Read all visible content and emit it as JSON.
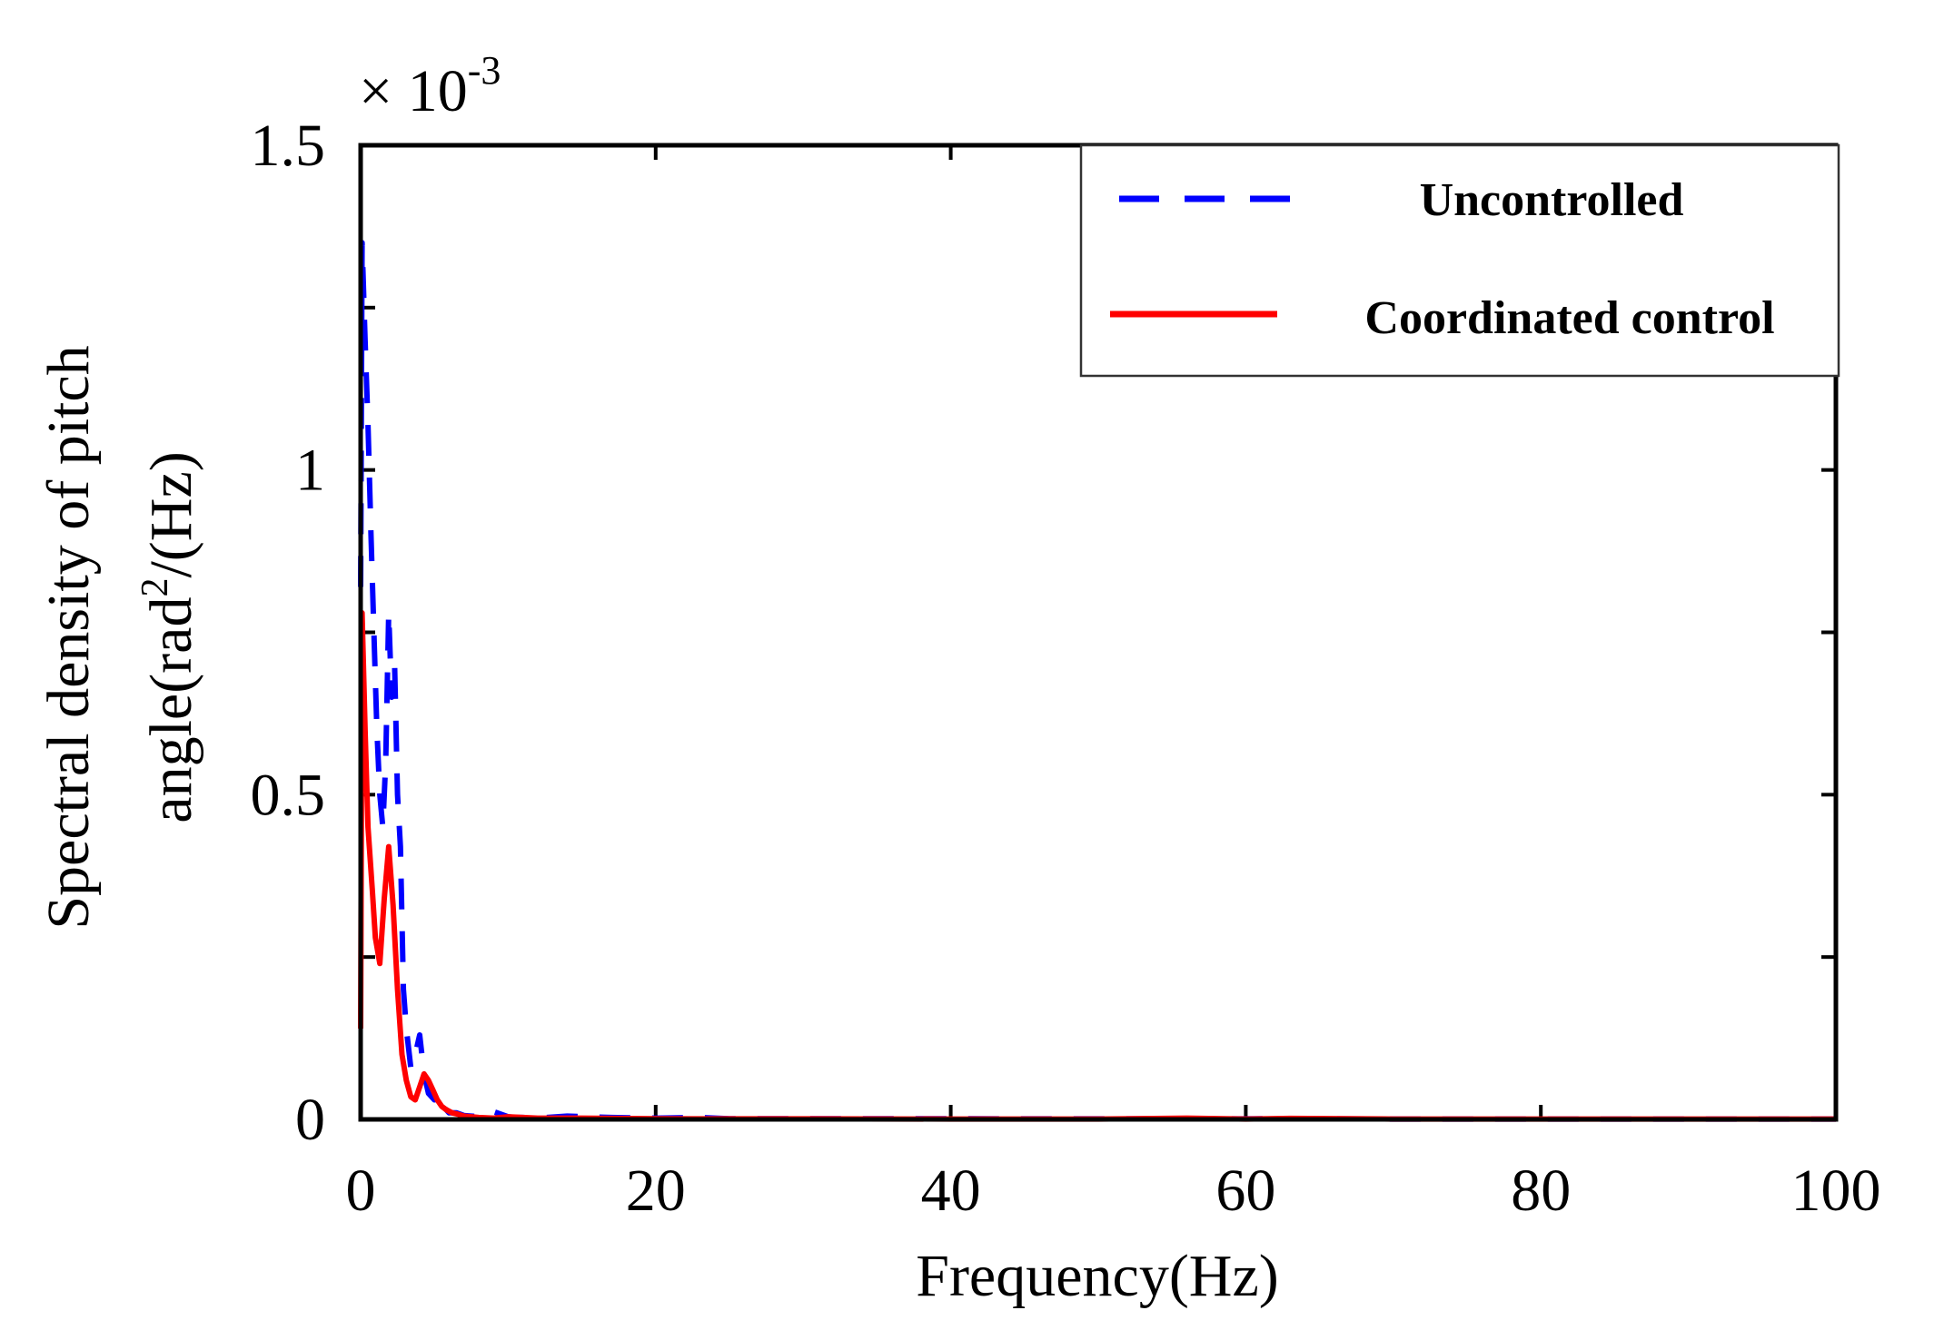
{
  "chart_data": {
    "type": "line",
    "title": "",
    "xlabel": "Frequency(Hz)",
    "ylabel_line1": "Spectral density of pitch",
    "ylabel_line2_prefix": "angle(rad",
    "ylabel_line2_sup": "2",
    "ylabel_line2_suffix": "/(Hz)",
    "exponent_prefix": "× 10",
    "exponent_power": "-3",
    "xlim": [
      0,
      100
    ],
    "ylim": [
      0,
      1.5
    ],
    "y_scale": 0.001,
    "xticks": [
      0,
      20,
      40,
      60,
      80,
      100
    ],
    "xtick_labels": [
      "0",
      "20",
      "40",
      "60",
      "80",
      "100"
    ],
    "yticks": [
      0,
      0.5,
      1,
      1.5
    ],
    "ytick_labels": [
      "0",
      "0.5",
      "1",
      "1.5"
    ],
    "y_minor_ticks": [
      0.25,
      0.75,
      1.25
    ],
    "grid": false,
    "legend_position": "top-right",
    "series": [
      {
        "name": "Uncontrolled",
        "color": "#0000ff",
        "style": "dashed",
        "x": [
          0.0,
          0.1,
          0.3,
          0.5,
          0.7,
          0.9,
          1.1,
          1.3,
          1.5,
          1.7,
          1.9,
          2.1,
          2.3,
          2.5,
          2.7,
          2.9,
          3.1,
          3.4,
          3.7,
          4.0,
          4.3,
          4.6,
          5.0,
          5.3,
          5.6,
          6.0,
          6.5,
          7.0,
          8.0,
          9.0,
          10.0,
          10.5,
          11.0,
          12.0,
          14.0,
          15.5,
          17.0,
          20.0,
          23.0,
          25.0,
          30.0,
          40.0,
          50.0,
          56.0,
          60.0,
          63.0,
          70.0,
          80.0,
          90.0,
          100.0
        ],
        "values": [
          0.82,
          1.35,
          1.2,
          1.07,
          0.9,
          0.75,
          0.6,
          0.5,
          0.45,
          0.55,
          0.78,
          0.65,
          0.7,
          0.5,
          0.42,
          0.2,
          0.14,
          0.08,
          0.1,
          0.13,
          0.07,
          0.04,
          0.03,
          0.04,
          0.02,
          0.01,
          0.01,
          0.006,
          0.004,
          0.012,
          0.004,
          0.003,
          0.003,
          0.002,
          0.005,
          0.004,
          0.003,
          0.002,
          0.003,
          0.001,
          0.001,
          0.001,
          0.0008,
          0.001,
          0.0008,
          0.0012,
          0.0005,
          0.0005,
          0.0005,
          0.0005
        ]
      },
      {
        "name": "Coordinated control",
        "color": "#ff0000",
        "style": "solid",
        "x": [
          0.0,
          0.1,
          0.3,
          0.5,
          0.8,
          1.0,
          1.3,
          1.6,
          1.9,
          2.2,
          2.5,
          2.8,
          3.1,
          3.4,
          3.7,
          4.0,
          4.3,
          4.6,
          4.9,
          5.2,
          5.5,
          5.8,
          6.2,
          6.6,
          7.0,
          8.0,
          9.0,
          10.0,
          12.0,
          15.0,
          20.0,
          30.0,
          40.0,
          50.0,
          56.0,
          60.0,
          63.0,
          70.0,
          80.0,
          90.0,
          100.0
        ],
        "values": [
          0.14,
          0.78,
          0.6,
          0.45,
          0.35,
          0.28,
          0.24,
          0.34,
          0.42,
          0.33,
          0.2,
          0.1,
          0.06,
          0.035,
          0.03,
          0.05,
          0.07,
          0.06,
          0.045,
          0.03,
          0.02,
          0.015,
          0.01,
          0.008,
          0.005,
          0.003,
          0.002,
          0.004,
          0.002,
          0.002,
          0.001,
          0.0008,
          0.0006,
          0.0006,
          0.002,
          0.0006,
          0.0015,
          0.0005,
          0.0005,
          0.0005,
          0.0005
        ]
      }
    ]
  }
}
